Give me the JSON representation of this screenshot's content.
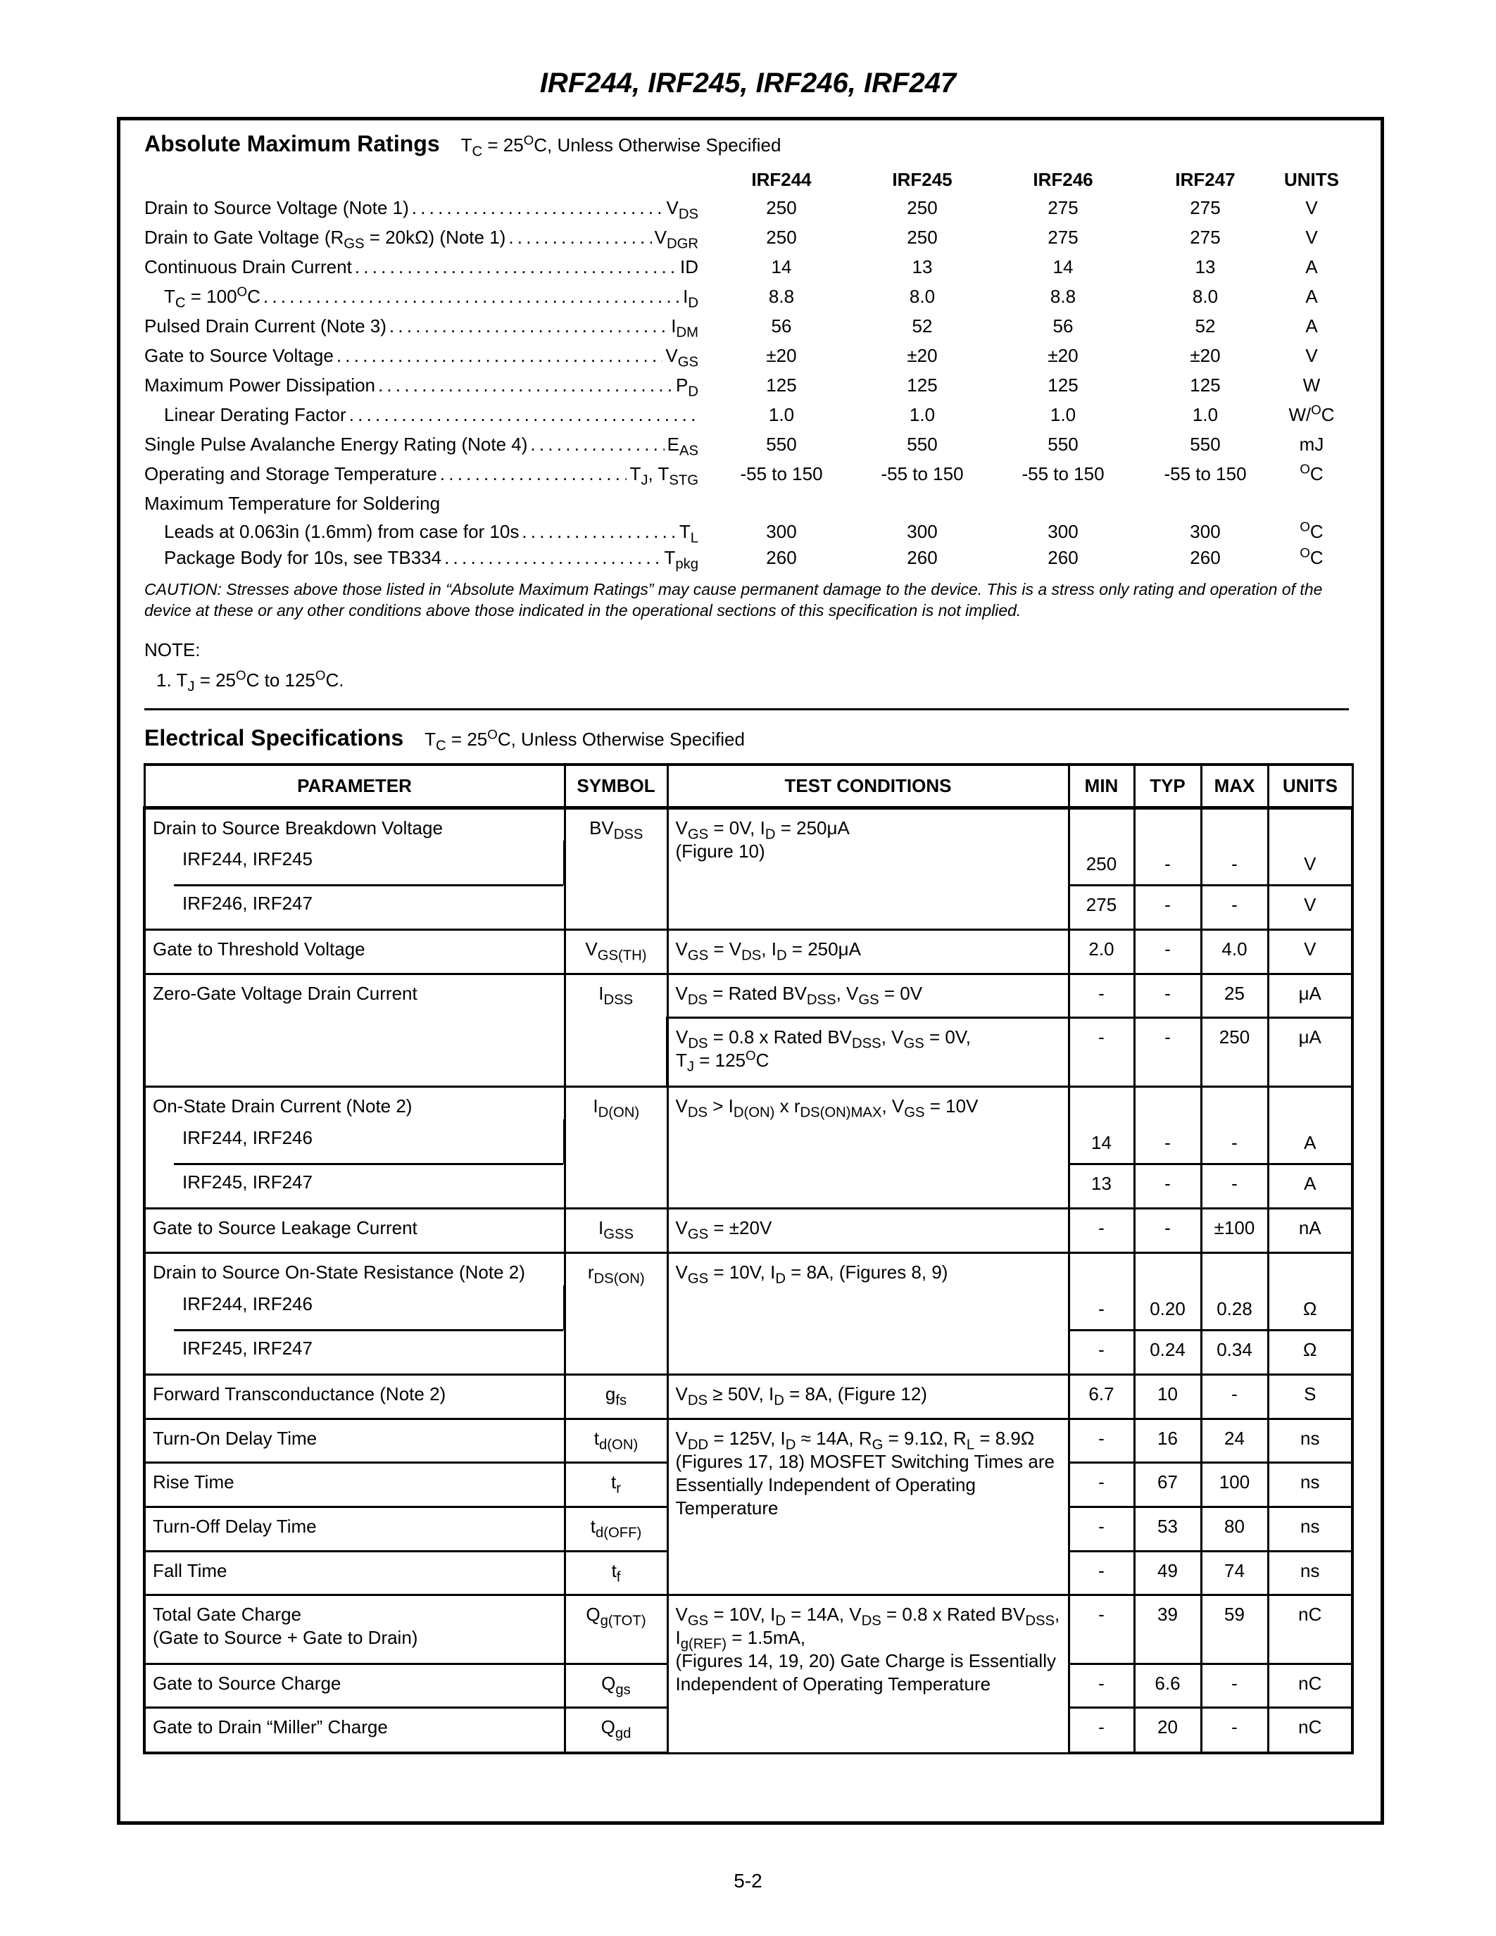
{
  "title": "IRF244, IRF245, IRF246, IRF247",
  "ratings": {
    "heading": "Absolute Maximum Ratings",
    "condition": "T_{C} = 25^{O}C, Unless Otherwise Specified",
    "columns": [
      "IRF244",
      "IRF245",
      "IRF246",
      "IRF247",
      "UNITS"
    ],
    "rows": [
      {
        "label": "Drain to Source Voltage (Note 1)",
        "symbol": "V_{DS}",
        "values": [
          "250",
          "250",
          "275",
          "275"
        ],
        "unit": "V"
      },
      {
        "label": "Drain to Gate Voltage (R_{GS} = 20kΩ) (Note 1)",
        "symbol": "V_{DGR}",
        "values": [
          "250",
          "250",
          "275",
          "275"
        ],
        "unit": "V"
      },
      {
        "label": "Continuous Drain Current",
        "symbol": "ID",
        "values": [
          "14",
          "13",
          "14",
          "13"
        ],
        "unit": "A"
      },
      {
        "label": "T_{C} = 100^{O}C",
        "symbol": "I_{D}",
        "values": [
          "8.8",
          "8.0",
          "8.8",
          "8.0"
        ],
        "unit": "A"
      },
      {
        "label": "Pulsed Drain Current (Note 3)",
        "symbol": "I_{DM}",
        "values": [
          "56",
          "52",
          "56",
          "52"
        ],
        "unit": "A"
      },
      {
        "label": "Gate to Source Voltage",
        "symbol": "V_{GS}",
        "values": [
          "±20",
          "±20",
          "±20",
          "±20"
        ],
        "unit": "V"
      },
      {
        "label": "Maximum Power Dissipation",
        "symbol": "P_{D}",
        "values": [
          "125",
          "125",
          "125",
          "125"
        ],
        "unit": "W"
      },
      {
        "label": "Linear Derating Factor",
        "symbol": "",
        "values": [
          "1.0",
          "1.0",
          "1.0",
          "1.0"
        ],
        "unit": "W/^{O}C"
      },
      {
        "label": "Single Pulse Avalanche Energy Rating (Note 4)",
        "symbol": "E_{AS}",
        "values": [
          "550",
          "550",
          "550",
          "550"
        ],
        "unit": "mJ"
      },
      {
        "label": "Operating and Storage Temperature",
        "symbol": "T_{J}, T_{STG}",
        "values": [
          "-55 to 150",
          "-55 to 150",
          "-55 to 150",
          "-55 to 150"
        ],
        "unit": "^{O}C"
      },
      {
        "label": "Maximum Temperature for Soldering",
        "symbol": "",
        "values": [
          "",
          "",
          "",
          ""
        ],
        "unit": ""
      },
      {
        "label": "Leads at 0.063in (1.6mm) from case for 10s",
        "symbol": "T_{L}",
        "values": [
          "300",
          "300",
          "300",
          "300"
        ],
        "unit": "^{O}C"
      },
      {
        "label": "Package Body for 10s, see TB334",
        "symbol": "T_{pkg}",
        "values": [
          "260",
          "260",
          "260",
          "260"
        ],
        "unit": "^{O}C"
      }
    ],
    "caution": "CAUTION: Stresses above those listed in “Absolute Maximum Ratings” may cause permanent damage to the device. This is a stress only rating and operation of the device at these or any other conditions above those indicated in the operational sections of this specification is not implied.",
    "note_heading": "NOTE:",
    "notes": [
      "1.  T_{J} = 25^{O}C to 125^{O}C."
    ]
  },
  "electrical": {
    "heading": "Electrical Specifications",
    "condition": "T_{C} = 25^{O}C, Unless Otherwise Specified",
    "headers": [
      "PARAMETER",
      "SYMBOL",
      "TEST CONDITIONS",
      "MIN",
      "TYP",
      "MAX",
      "UNITS"
    ],
    "bvdss": {
      "param": "Drain to Source Breakdown Voltage",
      "symbol": "BV_{DSS}",
      "cond": "V_{GS} = 0V, I_{D} = 250μA\n(Figure 10)",
      "subs": [
        {
          "label": "IRF244, IRF245",
          "values": [
            "250",
            "-",
            "-",
            "V"
          ]
        },
        {
          "label": "IRF246, IRF247",
          "values": [
            "275",
            "-",
            "-",
            "V"
          ]
        }
      ]
    },
    "vgsth": {
      "param": "Gate to Threshold Voltage",
      "symbol": "V_{GS(TH)}",
      "cond": "V_{GS} = V_{DS}, I_{D} = 250μA",
      "values": [
        "2.0",
        "-",
        "4.0",
        "V"
      ]
    },
    "idss": {
      "param": "Zero-Gate Voltage Drain Current",
      "symbol": "I_{DSS}",
      "conds": [
        {
          "cond": "V_{DS} = Rated BV_{DSS}, V_{GS} = 0V",
          "values": [
            "-",
            "-",
            "25",
            "μA"
          ]
        },
        {
          "cond": "V_{DS} = 0.8 x Rated BV_{DSS}, V_{GS} = 0V,\nT_{J} = 125^{O}C",
          "values": [
            "-",
            "-",
            "250",
            "μA"
          ]
        }
      ]
    },
    "idon": {
      "param": "On-State Drain Current (Note 2)",
      "symbol": "I_{D(ON)}",
      "cond": "V_{DS} > I_{D(ON)} x r_{DS(ON)MAX}, V_{GS} = 10V",
      "subs": [
        {
          "label": "IRF244, IRF246",
          "values": [
            "14",
            "-",
            "-",
            "A"
          ]
        },
        {
          "label": "IRF245, IRF247",
          "values": [
            "13",
            "-",
            "-",
            "A"
          ]
        }
      ]
    },
    "igss": {
      "param": "Gate to Source Leakage Current",
      "symbol": "I_{GSS}",
      "cond": "V_{GS} = ±20V",
      "values": [
        "-",
        "-",
        "±100",
        "nA"
      ]
    },
    "rdson": {
      "param": "Drain to Source On-State Resistance (Note 2)",
      "symbol": "r_{DS(ON)}",
      "cond": "V_{GS} = 10V, I_{D} = 8A, (Figures 8, 9)",
      "subs": [
        {
          "label": "IRF244, IRF246",
          "values": [
            "-",
            "0.20",
            "0.28",
            "Ω"
          ]
        },
        {
          "label": "IRF245, IRF247",
          "values": [
            "-",
            "0.24",
            "0.34",
            "Ω"
          ]
        }
      ]
    },
    "gfs": {
      "param": "Forward Transconductance (Note 2)",
      "symbol": "g_{fs}",
      "cond": "V_{DS} ≥ 50V, I_{D} = 8A, (Figure 12)",
      "values": [
        "6.7",
        "10",
        "-",
        "S"
      ]
    },
    "switching": {
      "cond": "V_{DD} = 125V, I_{D} ≈ 14A, R_{G} = 9.1Ω, R_{L} = 8.9Ω\n(Figures 17, 18) MOSFET Switching Times are Essentially Independent of Operating Temperature",
      "items": [
        {
          "param": "Turn-On Delay Time",
          "symbol": "t_{d(ON)}",
          "values": [
            "-",
            "16",
            "24",
            "ns"
          ]
        },
        {
          "param": "Rise Time",
          "symbol": "t_{r}",
          "values": [
            "-",
            "67",
            "100",
            "ns"
          ]
        },
        {
          "param": "Turn-Off Delay Time",
          "symbol": "t_{d(OFF)}",
          "values": [
            "-",
            "53",
            "80",
            "ns"
          ]
        },
        {
          "param": "Fall Time",
          "symbol": "t_{f}",
          "values": [
            "-",
            "49",
            "74",
            "ns"
          ]
        }
      ]
    },
    "charge": {
      "cond": "V_{GS} = 10V, I_{D} = 14A, V_{DS} = 0.8 x Rated BV_{DSS}, I_{g(REF)} = 1.5mA,\n(Figures 14, 19, 20) Gate Charge is Essentially Independent of Operating Temperature",
      "items": [
        {
          "param": "Total Gate Charge\n(Gate to Source + Gate to Drain)",
          "symbol": "Q_{g(TOT)}",
          "values": [
            "-",
            "39",
            "59",
            "nC"
          ]
        },
        {
          "param": "Gate to Source Charge",
          "symbol": "Q_{gs}",
          "values": [
            "-",
            "6.6",
            "-",
            "nC"
          ]
        },
        {
          "param": "Gate to Drain “Miller” Charge",
          "symbol": "Q_{gd}",
          "values": [
            "-",
            "20",
            "-",
            "nC"
          ]
        }
      ]
    }
  },
  "page_number": "5-2"
}
